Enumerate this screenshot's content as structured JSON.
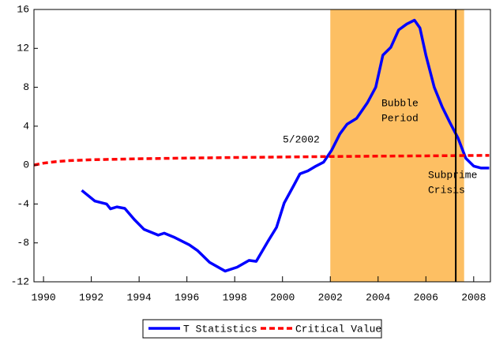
{
  "chart_data": {
    "type": "line",
    "x": [
      1991.6,
      1992.15,
      1992.64,
      1992.8,
      1993.07,
      1993.4,
      1993.8,
      1994.2,
      1994.8,
      1995.05,
      1995.45,
      1996.1,
      1996.45,
      1996.95,
      1997.6,
      1998.1,
      1998.6,
      1998.9,
      1999.4,
      1999.75,
      2000.07,
      2000.47,
      2000.73,
      2001.06,
      2001.4,
      2001.72,
      2002.05,
      2002.4,
      2002.7,
      2003.1,
      2003.55,
      2003.9,
      2004.2,
      2004.53,
      2004.86,
      2005.2,
      2005.52,
      2005.75,
      2006.0,
      2006.35,
      2006.68,
      2007.0,
      2007.34,
      2007.67,
      2008.0,
      2008.3,
      2008.65
    ],
    "series": [
      {
        "name": "T Statistics",
        "color": "#0000ff",
        "dash": false,
        "values": [
          -2.6,
          -3.7,
          -4.0,
          -4.5,
          -4.3,
          -4.45,
          -5.6,
          -6.6,
          -7.2,
          -7.0,
          -7.4,
          -8.2,
          -8.8,
          -10.0,
          -10.9,
          -10.5,
          -9.8,
          -9.9,
          -7.8,
          -6.4,
          -3.9,
          -2.1,
          -0.9,
          -0.6,
          -0.1,
          0.3,
          1.5,
          3.2,
          4.2,
          4.8,
          6.4,
          8.0,
          11.3,
          12.1,
          13.9,
          14.5,
          14.9,
          14.1,
          11.3,
          8.0,
          6.0,
          4.4,
          2.8,
          0.7,
          -0.1,
          -0.3,
          -0.3
        ]
      },
      {
        "name": "Critical Value",
        "color": "#ff0000",
        "dash": true,
        "x": [
          1989.6,
          1990,
          1990.5,
          1991,
          1992,
          1994,
          1996,
          1998,
          2000,
          2002,
          2004,
          2006,
          2008.65
        ],
        "values": [
          0,
          0.2,
          0.35,
          0.45,
          0.55,
          0.65,
          0.72,
          0.78,
          0.83,
          0.88,
          0.92,
          0.95,
          1.0
        ]
      }
    ],
    "shade": {
      "x": [
        2002.0,
        2007.6
      ],
      "color": "#fdbf63"
    },
    "vline": {
      "x": 2007.25,
      "color": "#000000"
    },
    "annotations": {
      "date": "5/2002",
      "bubble": [
        "Bubble",
        "Period"
      ],
      "crisis": [
        "Subprime",
        "Crisis"
      ]
    },
    "xlim": [
      1989.6,
      2008.7
    ],
    "xticks": [
      1990,
      1992,
      1994,
      1996,
      1998,
      2000,
      2002,
      2004,
      2006,
      2008
    ],
    "ylim": [
      -12,
      16
    ],
    "yticks": [
      -12,
      -8,
      -4,
      0,
      4,
      8,
      12,
      16
    ]
  }
}
